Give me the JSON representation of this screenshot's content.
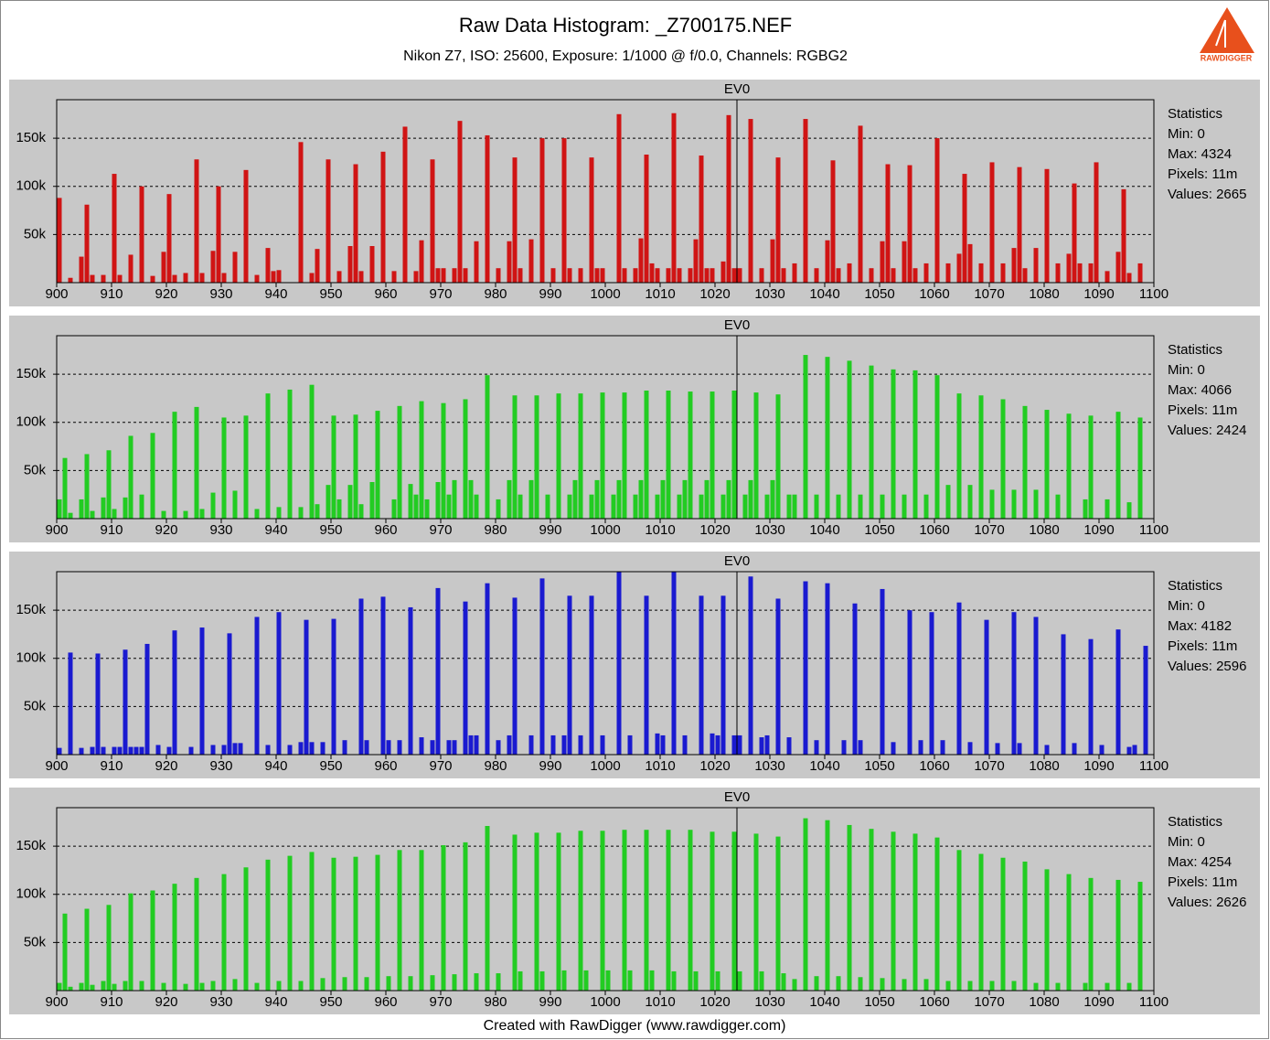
{
  "header": {
    "title": "Raw Data Histogram:  _Z700175.NEF",
    "subtitle": "Nikon Z7, ISO: 25600, Exposure: 1/1000 @ f/0.0, Channels: RGBG2"
  },
  "logo": "RAWDIGGER",
  "footer": "Created with RawDigger (www.rawdigger.com)",
  "chart_data": [
    {
      "type": "bar",
      "color": "#d01414",
      "annotation": {
        "text": "EV0",
        "x": 1024
      },
      "stats": {
        "title": "Statistics",
        "lines": [
          "Min: 0",
          "Max: 4324",
          "Pixels: 11m",
          "Values: 2665"
        ]
      },
      "x": [
        900,
        902,
        904,
        905,
        906,
        908,
        910,
        911,
        913,
        915,
        917,
        919,
        920,
        921,
        923,
        925,
        926,
        928,
        929,
        930,
        932,
        934,
        936,
        938,
        939,
        940,
        944,
        946,
        947,
        949,
        951,
        953,
        954,
        955,
        957,
        959,
        961,
        963,
        965,
        966,
        968,
        969,
        970,
        972,
        973,
        974,
        976,
        978,
        980,
        982,
        983,
        984,
        986,
        988,
        990,
        992,
        993,
        995,
        997,
        998,
        999,
        1002,
        1003,
        1005,
        1006,
        1007,
        1008,
        1009,
        1011,
        1012,
        1013,
        1015,
        1016,
        1017,
        1018,
        1019,
        1021,
        1022,
        1023,
        1024,
        1026,
        1028,
        1030,
        1031,
        1032,
        1034,
        1036,
        1038,
        1040,
        1041,
        1042,
        1044,
        1046,
        1048,
        1050,
        1051,
        1052,
        1054,
        1055,
        1056,
        1058,
        1060,
        1062,
        1064,
        1065,
        1066,
        1068,
        1070,
        1072,
        1074,
        1075,
        1076,
        1078,
        1080,
        1082,
        1084,
        1085,
        1086,
        1088,
        1089,
        1091,
        1093,
        1094,
        1095,
        1097
      ],
      "values": [
        88000,
        5000,
        27000,
        81000,
        8000,
        8000,
        113000,
        8000,
        29000,
        100000,
        7000,
        32000,
        92000,
        8000,
        10000,
        128000,
        10000,
        33000,
        100000,
        10000,
        32000,
        117000,
        8000,
        36000,
        12000,
        13000,
        146000,
        10000,
        35000,
        128000,
        12000,
        38000,
        123000,
        12000,
        38000,
        136000,
        12000,
        162000,
        12000,
        44000,
        128000,
        15000,
        15000,
        15000,
        168000,
        15000,
        43000,
        153000,
        15000,
        43000,
        130000,
        15000,
        45000,
        150000,
        15000,
        150000,
        15000,
        15000,
        130000,
        15000,
        15000,
        175000,
        15000,
        15000,
        46000,
        133000,
        20000,
        15000,
        15000,
        176000,
        15000,
        15000,
        45000,
        132000,
        15000,
        15000,
        22000,
        174000,
        15000,
        15000,
        170000,
        15000,
        45000,
        130000,
        15000,
        20000,
        170000,
        15000,
        44000,
        127000,
        15000,
        20000,
        163000,
        15000,
        43000,
        123000,
        15000,
        43000,
        122000,
        15000,
        20000,
        150000,
        20000,
        30000,
        113000,
        40000,
        20000,
        125000,
        20000,
        36000,
        120000,
        15000,
        36000,
        118000,
        20000,
        30000,
        103000,
        20000,
        20000,
        125000,
        12000,
        32000,
        97000,
        10000,
        20000
      ],
      "xlim": [
        900,
        1100
      ],
      "xticks": [
        900,
        910,
        920,
        930,
        940,
        950,
        960,
        970,
        980,
        990,
        1000,
        1010,
        1020,
        1030,
        1040,
        1050,
        1060,
        1070,
        1080,
        1090,
        1100
      ],
      "ylim": [
        0,
        190000
      ],
      "yticks": [
        {
          "value": 50000,
          "label": "50k"
        },
        {
          "value": 100000,
          "label": "100k"
        },
        {
          "value": 150000,
          "label": "150k"
        }
      ],
      "grid": true
    },
    {
      "type": "bar",
      "color": "#22cc22",
      "annotation": {
        "text": "EV0",
        "x": 1024
      },
      "stats": {
        "title": "Statistics",
        "lines": [
          "Min: 0",
          "Max: 4066",
          "Pixels: 11m",
          "Values: 2424"
        ]
      },
      "x": [
        901,
        905,
        909,
        913,
        917,
        921,
        925,
        930,
        934,
        938,
        942,
        946,
        950,
        954,
        958,
        962,
        966,
        970,
        974,
        978,
        983,
        987,
        991,
        995,
        999,
        1003,
        1007,
        1011,
        1015,
        1019,
        1023,
        1027,
        1031,
        1036,
        1040,
        1044,
        1048,
        1052,
        1056,
        1060,
        1064,
        1068,
        1072,
        1076,
        1080,
        1084,
        1088,
        1093,
        1097,
        900,
        902,
        904,
        906,
        908,
        910,
        912,
        915,
        919,
        923,
        926,
        928,
        932,
        936,
        940,
        944,
        947,
        949,
        951,
        953,
        955,
        957,
        961,
        964,
        965,
        967,
        969,
        971,
        972,
        975,
        976,
        980,
        982,
        984,
        986,
        989,
        993,
        994,
        997,
        998,
        1001,
        1002,
        1005,
        1006,
        1009,
        1010,
        1013,
        1014,
        1017,
        1018,
        1021,
        1022,
        1025,
        1026,
        1029,
        1030,
        1033,
        1034,
        1038,
        1042,
        1046,
        1050,
        1054,
        1058,
        1062,
        1066,
        1070,
        1074,
        1078,
        1082,
        1087,
        1091,
        1095
      ],
      "values": [
        63000,
        67000,
        71000,
        86000,
        89000,
        111000,
        116000,
        105000,
        107000,
        130000,
        134000,
        139000,
        107000,
        108000,
        112000,
        117000,
        122000,
        120000,
        124000,
        149000,
        128000,
        128000,
        130000,
        130000,
        131000,
        131000,
        133000,
        133000,
        132000,
        132000,
        133000,
        131000,
        129000,
        170000,
        168000,
        164000,
        159000,
        155000,
        154000,
        149000,
        130000,
        128000,
        124000,
        117000,
        113000,
        109000,
        107000,
        111000,
        105000,
        20000,
        6000,
        20000,
        8000,
        22000,
        10000,
        22000,
        25000,
        8000,
        8000,
        10000,
        27000,
        29000,
        10000,
        12000,
        12000,
        15000,
        35000,
        20000,
        35000,
        15000,
        38000,
        20000,
        36000,
        25000,
        20000,
        38000,
        25000,
        40000,
        40000,
        25000,
        20000,
        40000,
        25000,
        40000,
        25000,
        25000,
        40000,
        25000,
        40000,
        25000,
        40000,
        25000,
        40000,
        25000,
        40000,
        25000,
        40000,
        25000,
        40000,
        25000,
        40000,
        25000,
        40000,
        25000,
        40000,
        25000,
        25000,
        25000,
        25000,
        25000,
        25000,
        25000,
        25000,
        35000,
        35000,
        30000,
        30000,
        30000,
        25000,
        20000,
        20000,
        17000
      ],
      "xlim": [
        900,
        1100
      ],
      "xticks": [
        900,
        910,
        920,
        930,
        940,
        950,
        960,
        970,
        980,
        990,
        1000,
        1010,
        1020,
        1030,
        1040,
        1050,
        1060,
        1070,
        1080,
        1090,
        1100
      ],
      "ylim": [
        0,
        190000
      ],
      "yticks": [
        {
          "value": 50000,
          "label": "50k"
        },
        {
          "value": 100000,
          "label": "100k"
        },
        {
          "value": 150000,
          "label": "150k"
        }
      ],
      "grid": true
    },
    {
      "type": "bar",
      "color": "#1a1ad0",
      "annotation": {
        "text": "EV0",
        "x": 1024
      },
      "stats": {
        "title": "Statistics",
        "lines": [
          "Min: 0",
          "Max: 4182",
          "Pixels: 11m",
          "Values: 2596"
        ]
      },
      "x": [
        902,
        907,
        912,
        916,
        921,
        926,
        931,
        936,
        940,
        945,
        950,
        955,
        959,
        964,
        969,
        974,
        978,
        983,
        988,
        993,
        997,
        1002,
        1007,
        1012,
        1017,
        1021,
        1026,
        1031,
        1036,
        1040,
        1045,
        1050,
        1055,
        1059,
        1064,
        1069,
        1074,
        1078,
        1083,
        1088,
        1093,
        1098,
        900,
        904,
        906,
        908,
        910,
        911,
        913,
        914,
        915,
        918,
        920,
        924,
        928,
        930,
        932,
        933,
        938,
        942,
        944,
        946,
        948,
        952,
        956,
        960,
        962,
        966,
        968,
        971,
        972,
        975,
        976,
        980,
        982,
        986,
        990,
        992,
        995,
        999,
        1004,
        1009,
        1010,
        1014,
        1019,
        1020,
        1023,
        1024,
        1028,
        1029,
        1033,
        1038,
        1043,
        1046,
        1052,
        1057,
        1061,
        1066,
        1071,
        1075,
        1080,
        1085,
        1090,
        1095,
        1096
      ],
      "values": [
        106000,
        105000,
        109000,
        115000,
        129000,
        132000,
        126000,
        143000,
        148000,
        140000,
        141000,
        162000,
        164000,
        153000,
        173000,
        159000,
        178000,
        163000,
        183000,
        165000,
        165000,
        190000,
        165000,
        190000,
        165000,
        165000,
        185000,
        162000,
        180000,
        178000,
        157000,
        172000,
        150000,
        148000,
        158000,
        140000,
        148000,
        143000,
        125000,
        120000,
        130000,
        113000,
        7000,
        7000,
        8000,
        8000,
        8000,
        8000,
        8000,
        8000,
        8000,
        10000,
        8000,
        8000,
        10000,
        10000,
        12000,
        12000,
        10000,
        10000,
        13000,
        13000,
        13000,
        15000,
        15000,
        15000,
        15000,
        18000,
        15000,
        15000,
        15000,
        20000,
        20000,
        15000,
        20000,
        20000,
        20000,
        20000,
        20000,
        20000,
        20000,
        22000,
        20000,
        20000,
        22000,
        20000,
        20000,
        20000,
        18000,
        20000,
        18000,
        15000,
        15000,
        15000,
        13000,
        15000,
        15000,
        13000,
        12000,
        12000,
        10000,
        12000,
        10000,
        8000,
        10000
      ],
      "xlim": [
        900,
        1100
      ],
      "xticks": [
        900,
        910,
        920,
        930,
        940,
        950,
        960,
        970,
        980,
        990,
        1000,
        1010,
        1020,
        1030,
        1040,
        1050,
        1060,
        1070,
        1080,
        1090,
        1100
      ],
      "ylim": [
        0,
        190000
      ],
      "yticks": [
        {
          "value": 50000,
          "label": "50k"
        },
        {
          "value": 100000,
          "label": "100k"
        },
        {
          "value": 150000,
          "label": "150k"
        }
      ],
      "grid": true
    },
    {
      "type": "bar",
      "color": "#22cc22",
      "annotation": {
        "text": "EV0",
        "x": 1024
      },
      "stats": {
        "title": "Statistics",
        "lines": [
          "Min: 0",
          "Max: 4254",
          "Pixels: 11m",
          "Values: 2626"
        ]
      },
      "x": [
        901,
        905,
        909,
        913,
        917,
        921,
        925,
        930,
        934,
        938,
        942,
        946,
        950,
        954,
        958,
        962,
        966,
        970,
        974,
        978,
        983,
        987,
        991,
        995,
        999,
        1003,
        1007,
        1011,
        1015,
        1019,
        1023,
        1027,
        1031,
        1036,
        1040,
        1044,
        1048,
        1052,
        1056,
        1060,
        1064,
        1068,
        1072,
        1076,
        1080,
        1084,
        1088,
        1093,
        1097,
        900,
        902,
        904,
        906,
        908,
        910,
        912,
        915,
        919,
        923,
        926,
        928,
        932,
        936,
        940,
        944,
        948,
        952,
        956,
        960,
        964,
        968,
        972,
        976,
        980,
        984,
        988,
        992,
        996,
        1000,
        1004,
        1008,
        1012,
        1016,
        1020,
        1024,
        1028,
        1032,
        1034,
        1038,
        1042,
        1046,
        1050,
        1054,
        1058,
        1062,
        1066,
        1070,
        1074,
        1078,
        1082,
        1087,
        1091,
        1095
      ],
      "values": [
        80000,
        85000,
        89000,
        101000,
        104000,
        111000,
        117000,
        121000,
        128000,
        136000,
        140000,
        144000,
        138000,
        139000,
        141000,
        146000,
        146000,
        151000,
        154000,
        171000,
        162000,
        164000,
        164000,
        166000,
        166000,
        167000,
        167000,
        167000,
        167000,
        165000,
        165000,
        163000,
        160000,
        179000,
        177000,
        172000,
        168000,
        165000,
        163000,
        159000,
        146000,
        142000,
        138000,
        134000,
        126000,
        121000,
        117000,
        115000,
        113000,
        8000,
        4000,
        8000,
        6000,
        10000,
        7000,
        10000,
        10000,
        8000,
        7000,
        8000,
        10000,
        12000,
        8000,
        10000,
        10000,
        13000,
        14000,
        14000,
        15000,
        15000,
        16000,
        17000,
        18000,
        18000,
        20000,
        20000,
        21000,
        21000,
        21000,
        21000,
        21000,
        20000,
        20000,
        20000,
        20000,
        20000,
        18000,
        12000,
        15000,
        15000,
        14000,
        13000,
        12000,
        12000,
        10000,
        10000,
        10000,
        10000,
        8000,
        8000,
        8000,
        8000,
        8000
      ],
      "xlim": [
        900,
        1100
      ],
      "xticks": [
        900,
        910,
        920,
        930,
        940,
        950,
        960,
        970,
        980,
        990,
        1000,
        1010,
        1020,
        1030,
        1040,
        1050,
        1060,
        1070,
        1080,
        1090,
        1100
      ],
      "ylim": [
        0,
        190000
      ],
      "yticks": [
        {
          "value": 50000,
          "label": "50k"
        },
        {
          "value": 100000,
          "label": "100k"
        },
        {
          "value": 150000,
          "label": "150k"
        }
      ],
      "grid": true
    }
  ]
}
